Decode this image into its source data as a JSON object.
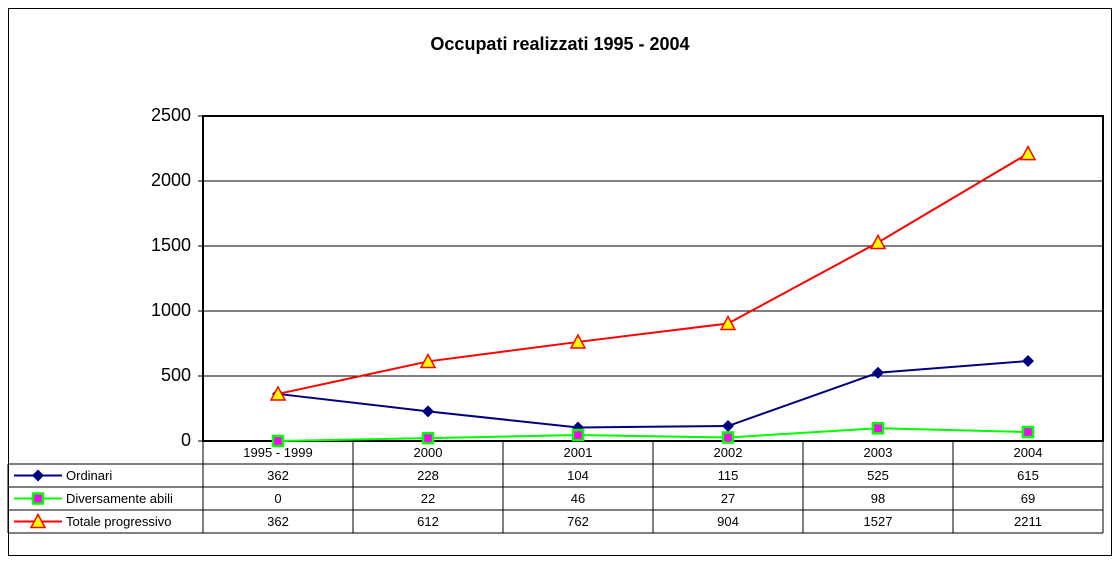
{
  "chart_data": {
    "type": "line",
    "title": "Occupati realizzati 1995 - 2004",
    "categories": [
      "1995 - 1999",
      "2000",
      "2001",
      "2002",
      "2003",
      "2004"
    ],
    "series": [
      {
        "name": "Ordinari",
        "color": "#000080",
        "marker": "diamond",
        "values": [
          362,
          228,
          104,
          115,
          525,
          615
        ]
      },
      {
        "name": "Diversamente abili",
        "color": "#00ff00",
        "marker": "square",
        "values": [
          0,
          22,
          46,
          27,
          98,
          69
        ]
      },
      {
        "name": "Totale progressivo",
        "color": "#ff0000",
        "marker": "triangle",
        "values": [
          362,
          612,
          762,
          904,
          1527,
          2211
        ]
      }
    ],
    "ylim": [
      0,
      2500
    ],
    "yticks": [
      0,
      500,
      1000,
      1500,
      2000,
      2500
    ],
    "grid": true
  }
}
